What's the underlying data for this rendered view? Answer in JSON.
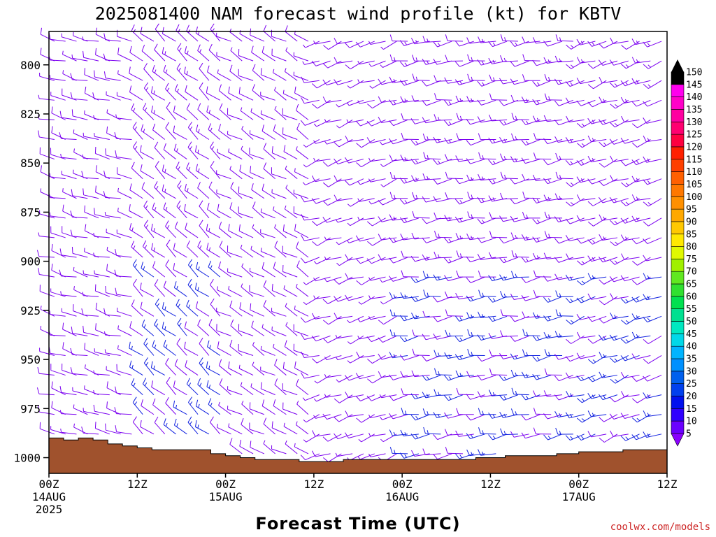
{
  "chart_data": {
    "type": "wind-barb-profile",
    "title": "2025081400 NAM forecast wind profile (kt) for KBTV",
    "xlabel": "Forecast Time (UTC)",
    "ylabel": "",
    "credit": "coolwx.com/models",
    "ylim": [
      1008,
      783
    ],
    "y_ticks": [
      800,
      825,
      850,
      875,
      900,
      925,
      950,
      975,
      1000
    ],
    "xlim_hours": [
      0,
      84
    ],
    "x_ticks": [
      {
        "hour": 0,
        "line1": "00Z",
        "line2": "14AUG",
        "line3": "2025"
      },
      {
        "hour": 12,
        "line1": "12Z",
        "line2": "",
        "line3": ""
      },
      {
        "hour": 24,
        "line1": "00Z",
        "line2": "15AUG",
        "line3": ""
      },
      {
        "hour": 36,
        "line1": "12Z",
        "line2": "",
        "line3": ""
      },
      {
        "hour": 48,
        "line1": "00Z",
        "line2": "16AUG",
        "line3": ""
      },
      {
        "hour": 60,
        "line1": "12Z",
        "line2": "",
        "line3": ""
      },
      {
        "hour": 72,
        "line1": "00Z",
        "line2": "17AUG",
        "line3": ""
      },
      {
        "hour": 84,
        "line1": "12Z",
        "line2": "",
        "line3": ""
      }
    ],
    "surface_pressure": {
      "hours": [
        0,
        2,
        4,
        6,
        8,
        10,
        12,
        14,
        18,
        22,
        24,
        26,
        28,
        30,
        34,
        36,
        40,
        44,
        48,
        50,
        54,
        58,
        62,
        66,
        69,
        72,
        78,
        80,
        84
      ],
      "pressure": [
        990,
        991,
        990,
        991,
        993,
        994,
        995,
        996,
        996,
        998,
        999,
        1000,
        1001,
        1001,
        1002,
        1002,
        1001,
        1001,
        1001,
        1001,
        1001,
        1000,
        999,
        999,
        998,
        997,
        996,
        996,
        995
      ]
    },
    "barbs": {
      "levels": [
        788,
        798,
        808,
        818,
        828,
        838,
        848,
        858,
        868,
        878,
        888,
        898,
        908,
        918,
        928,
        938,
        948,
        958,
        968,
        978,
        988,
        998
      ],
      "hour_step": 1.5,
      "regimes": [
        {
          "from_hour": 0,
          "to_hour": 12,
          "direction_deg": 285,
          "speed_kt": 10
        },
        {
          "from_hour": 12,
          "to_hour": 24,
          "direction_deg": 310,
          "speed_kt": 15
        },
        {
          "from_hour": 24,
          "to_hour": 36,
          "direction_deg": 300,
          "speed_kt": 10
        },
        {
          "from_hour": 36,
          "to_hour": 48,
          "direction_deg": 250,
          "speed_kt": 10
        },
        {
          "from_hour": 48,
          "to_hour": 72,
          "direction_deg": 260,
          "speed_kt": 15
        },
        {
          "from_hour": 72,
          "to_hour": 84,
          "direction_deg": 250,
          "speed_kt": 15
        }
      ],
      "color_base": "#7b00f0",
      "color_strong": "#1020e0"
    },
    "colorbar": {
      "labels": [
        5,
        10,
        15,
        20,
        25,
        30,
        35,
        40,
        45,
        50,
        55,
        60,
        65,
        70,
        75,
        80,
        85,
        90,
        95,
        100,
        105,
        110,
        115,
        120,
        125,
        130,
        135,
        140,
        145,
        150
      ],
      "colors": [
        "#8a00ff",
        "#6a00ff",
        "#3000ff",
        "#0010ee",
        "#0040ee",
        "#0060ee",
        "#0090ff",
        "#00b4ff",
        "#00d8e8",
        "#00e8c0",
        "#00e090",
        "#00e050",
        "#30e030",
        "#60e820",
        "#a0f000",
        "#e0f800",
        "#ffe800",
        "#ffc800",
        "#ffa800",
        "#ff9000",
        "#ff7800",
        "#ff6000",
        "#ff4000",
        "#ff2000",
        "#ff0040",
        "#ff0070",
        "#ff00a0",
        "#ff00c8",
        "#ff00ee",
        "#000000"
      ]
    },
    "terrain_color": "#a0522d",
    "grid": false,
    "legend": "right"
  }
}
